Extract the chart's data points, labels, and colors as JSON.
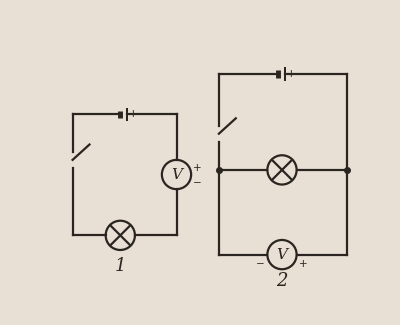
{
  "bg_color": "#e8e0d5",
  "line_color": "#2a2520",
  "label1": "1",
  "label2": "2",
  "lw": 1.6
}
